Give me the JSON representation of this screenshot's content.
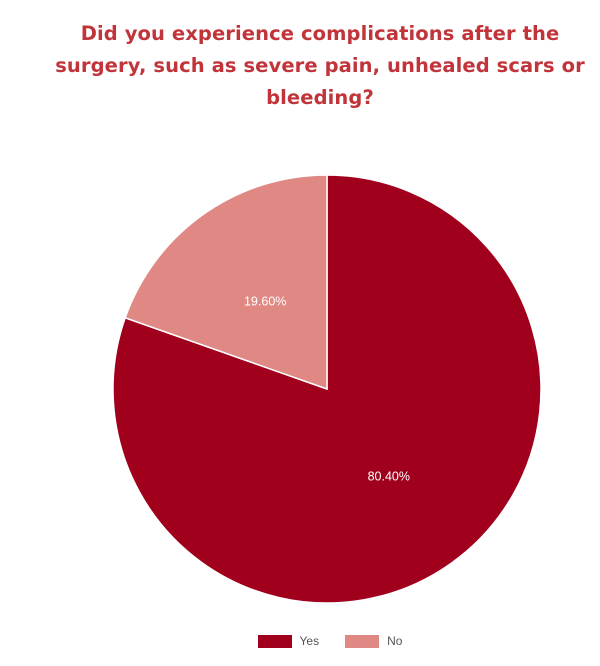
{
  "chart_data": {
    "type": "pie",
    "title": "Did you experience complications after the surgery, such as severe pain, unhealed scars or bleeding?",
    "slices": [
      {
        "name": "Yes",
        "value": 80.4,
        "label": "80.40%",
        "color": "#a0001b"
      },
      {
        "name": "No",
        "value": 19.6,
        "label": "19.60%",
        "color": "#e08883"
      }
    ],
    "legend_position": "bottom",
    "start_angle": "top, clockwise"
  },
  "colors": {
    "title": "#c0343a",
    "slice_border": "#ffffff"
  }
}
